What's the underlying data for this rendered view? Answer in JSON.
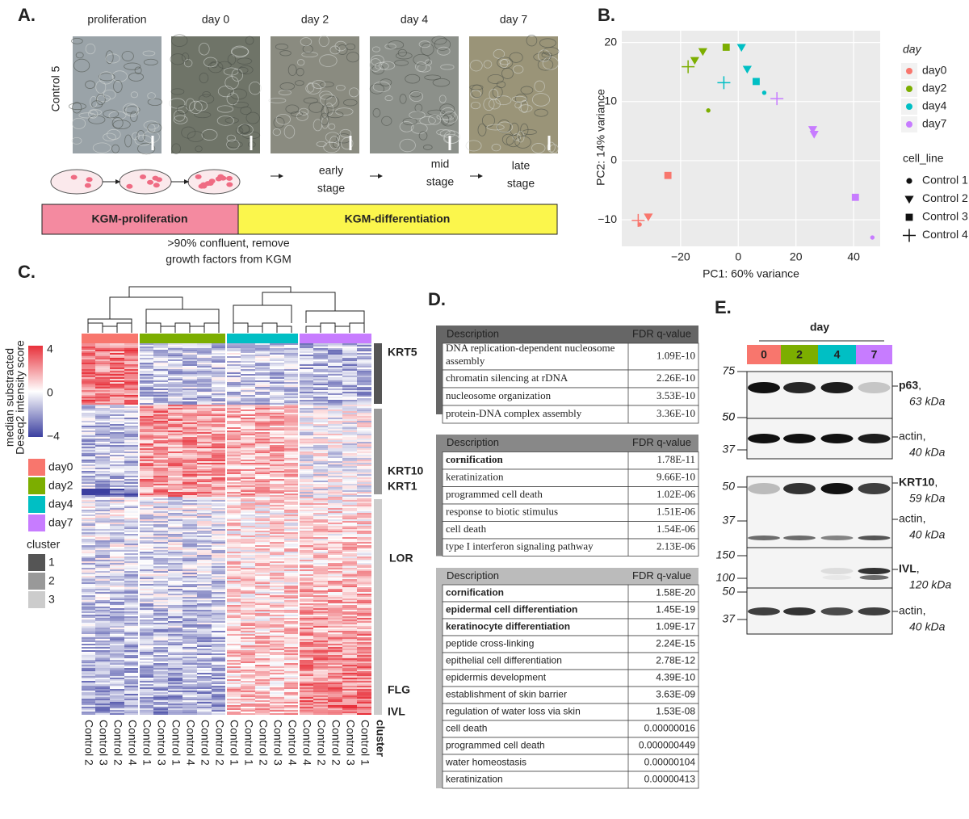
{
  "panel_a": {
    "label": "A.",
    "row_label": "Control 5",
    "stages": [
      "proliferation",
      "day 0",
      "day 2",
      "day 4",
      "day 7"
    ],
    "notes": [
      [
        "early",
        "stage"
      ],
      [
        "mid",
        "stage"
      ],
      [
        "late",
        "stage"
      ]
    ],
    "media": [
      "KGM-proliferation",
      "KGM-differentiation"
    ],
    "footnote": [
      ">90% confluent, remove",
      "growth factors from KGM"
    ]
  },
  "chart_data": {
    "type": "scatter",
    "label": "B.",
    "xlabel": "PC1: 60% variance",
    "ylabel": "PC2: 14% variance",
    "xlim": [
      -40.4,
      49.2
    ],
    "ylim": [
      -14.5,
      22
    ],
    "xticks": [
      {
        "value": -20,
        "label": "−20"
      },
      0,
      20,
      40
    ],
    "yticks": [
      {
        "value": -10,
        "label": "−10"
      },
      0,
      10,
      20
    ],
    "grid": true,
    "legend_title": "day",
    "shape_legend_title": "cell_line",
    "shapes": [
      {
        "name": "Control 1",
        "shape": "circle"
      },
      {
        "name": "Control 2",
        "shape": "triangle"
      },
      {
        "name": "Control 3",
        "shape": "square"
      },
      {
        "name": "Control 4",
        "shape": "plus"
      }
    ],
    "series": [
      {
        "name": "day0",
        "color": "#f8766d",
        "x": [
          -34.2,
          -31.2,
          -24.4,
          -34.7
        ],
        "values": [
          -10.8,
          -9.5,
          -2.5,
          -10.1
        ],
        "cell_line": [
          0,
          1,
          2,
          3
        ]
      },
      {
        "name": "day2",
        "color": "#7cae00",
        "x": [
          -10.4,
          -15.1,
          -12.3,
          -4.2,
          -17.4
        ],
        "values": [
          8.5,
          17.0,
          18.5,
          19.2,
          15.9
        ],
        "cell_line": [
          0,
          1,
          1,
          2,
          3
        ]
      },
      {
        "name": "day4",
        "color": "#00bfc4",
        "x": [
          9.0,
          1.1,
          3.1,
          6.2,
          -5.0
        ],
        "values": [
          11.5,
          19.2,
          15.5,
          13.4,
          13.2
        ],
        "cell_line": [
          0,
          1,
          1,
          2,
          3
        ]
      },
      {
        "name": "day7",
        "color": "#c77cff",
        "x": [
          46.5,
          25.8,
          26.3,
          40.6,
          13.4
        ],
        "values": [
          -13.0,
          5.3,
          4.5,
          -6.2,
          10.5
        ],
        "cell_line": [
          0,
          1,
          1,
          2,
          3
        ]
      }
    ]
  },
  "panel_c": {
    "label": "C.",
    "scale_title": [
      "median substracted",
      "Deseq2 intensity score"
    ],
    "scale_ticks": [
      {
        "value": 4,
        "label": "4"
      },
      {
        "value": 0,
        "label": "0"
      },
      {
        "value": -4,
        "label": "−4"
      }
    ],
    "days": [
      "day0",
      "day2",
      "day4",
      "day7"
    ],
    "cluster_title": "cluster",
    "clusters": [
      "1",
      "2",
      "3"
    ],
    "columns": [
      "Control 2",
      "Control 3",
      "Control 2",
      "Control 4",
      "Control 1",
      "Control 3",
      "Control 1",
      "Control 4",
      "Control 2",
      "Control 2",
      "Control 1",
      "Control 1",
      "Control 2",
      "Control 3",
      "Control 4",
      "Control 4",
      "Control 2",
      "Control 2",
      "Control 3",
      "Control 1"
    ],
    "column_axis_label": "cluster",
    "genes": [
      {
        "name": "KRT5",
        "highlight": false
      },
      {
        "name": "KRT10",
        "highlight": true
      },
      {
        "name": "KRT1",
        "highlight": false
      },
      {
        "name": "LOR",
        "highlight": false
      },
      {
        "name": "FLG",
        "highlight": false
      },
      {
        "name": "IVL",
        "highlight": true
      }
    ]
  },
  "panel_d": {
    "label": "D.",
    "header": [
      "Description",
      "FDR q-value"
    ],
    "tables": [
      {
        "rows": [
          [
            "DNA replication-dependent nucleosome assembly",
            "1.09E-10"
          ],
          [
            "chromatin silencing at rDNA",
            "2.26E-10"
          ],
          [
            "nucleosome organization",
            "3.53E-10"
          ],
          [
            "protein-DNA complex assembly",
            "3.36E-10"
          ]
        ],
        "bold": [
          false,
          false,
          false,
          false
        ]
      },
      {
        "rows": [
          [
            "cornification",
            "1.78E-11"
          ],
          [
            "keratinization",
            "9.66E-10"
          ],
          [
            "programmed cell death",
            "1.02E-06"
          ],
          [
            "response to biotic stimulus",
            "1.51E-06"
          ],
          [
            "cell death",
            "1.54E-06"
          ],
          [
            "type I interferon signaling pathway",
            "2.13E-06"
          ]
        ],
        "bold": [
          true,
          false,
          false,
          false,
          false,
          false
        ]
      },
      {
        "rows": [
          [
            "cornification",
            "1.58E-20"
          ],
          [
            "epidermal cell differentiation",
            "1.45E-19"
          ],
          [
            "keratinocyte differentiation",
            "1.09E-17"
          ],
          [
            "peptide cross-linking",
            "2.24E-15"
          ],
          [
            "epithelial cell differentiation",
            "2.78E-12"
          ],
          [
            "epidermis development",
            "4.39E-10"
          ],
          [
            "establishment of skin barrier",
            "3.63E-09"
          ],
          [
            "regulation of water loss via skin",
            "1.53E-08"
          ],
          [
            "cell death",
            "0.00000016"
          ],
          [
            "programmed cell death",
            "0.000000449"
          ],
          [
            "water homeostasis",
            "0.00000104"
          ],
          [
            "keratinization",
            "0.00000413"
          ]
        ],
        "bold": [
          true,
          true,
          true,
          false,
          false,
          false,
          false,
          false,
          false,
          false,
          false,
          false
        ]
      }
    ]
  },
  "panel_e": {
    "label": "E.",
    "axis_title": "day",
    "lanes": [
      "0",
      "2",
      "4",
      "7"
    ],
    "blots": [
      {
        "markers": [
          "75",
          "50"
        ],
        "protein": "p63",
        "size": "63 kDa"
      },
      {
        "markers": [
          "50",
          "37"
        ],
        "protein": "actin",
        "size": "40 kDa"
      },
      {
        "markers": [
          "50"
        ],
        "protein": "KRT10",
        "size": "59 kDa"
      },
      {
        "markers": [
          "37"
        ],
        "protein": "actin",
        "size": "40 kDa"
      },
      {
        "markers": [
          "150",
          "100"
        ],
        "protein": "IVL",
        "size": "120 kDa"
      },
      {
        "markers": [
          "50",
          "37"
        ],
        "protein": "actin",
        "size": "40 kDa"
      }
    ]
  }
}
